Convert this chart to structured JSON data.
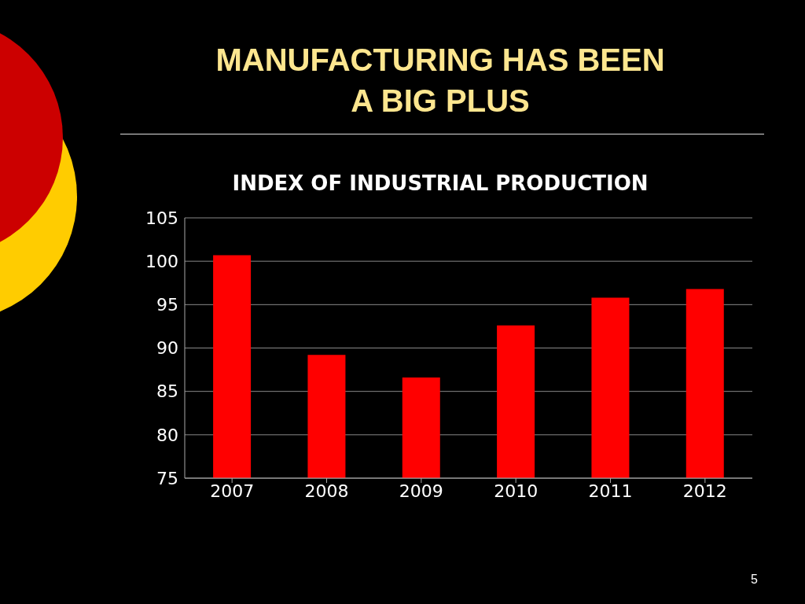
{
  "chart_data": {
    "type": "bar",
    "title": "MANUFACTURING HAS BEEN\nA BIG PLUS",
    "subtitle": "INDEX OF INDUSTRIAL PRODUCTION",
    "categories": [
      "2007",
      "2008",
      "2009",
      "2010",
      "2011",
      "2012"
    ],
    "values": [
      100.7,
      89.2,
      86.6,
      92.6,
      95.8,
      96.8
    ],
    "color": "#ff0000",
    "ylim": [
      75,
      105
    ],
    "yticks": [
      75,
      80,
      85,
      90,
      95,
      100,
      105
    ],
    "grid": "y",
    "legend": false,
    "annotations": [
      "5"
    ]
  }
}
